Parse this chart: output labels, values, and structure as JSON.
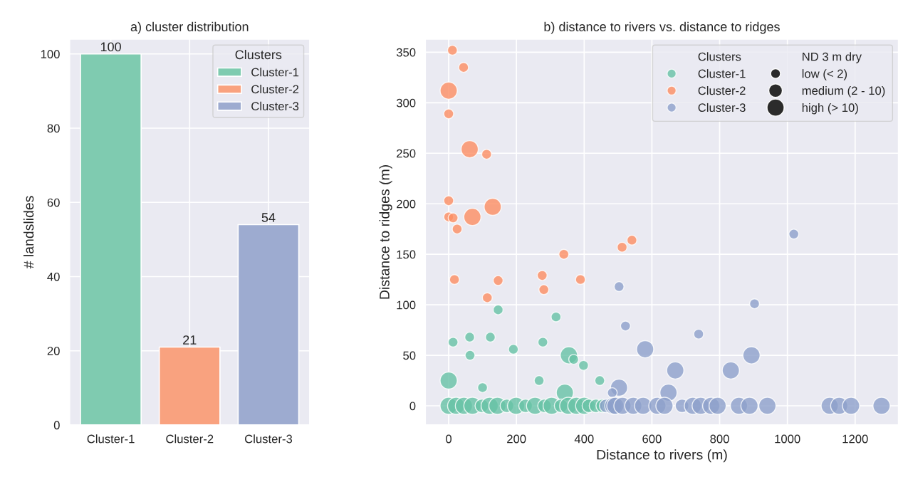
{
  "chart_data": [
    {
      "type": "bar",
      "title": "a) cluster distribution",
      "ylabel": "# landslides",
      "categories": [
        "Cluster-1",
        "Cluster-2",
        "Cluster-3"
      ],
      "series": [
        {
          "name": "Cluster-1",
          "color": "#7fcbb0",
          "values": [
            100,
            null,
            null
          ]
        },
        {
          "name": "Cluster-2",
          "color": "#f9a27f",
          "values": [
            null,
            21,
            null
          ]
        },
        {
          "name": "Cluster-3",
          "color": "#9dabd0",
          "values": [
            null,
            null,
            54
          ]
        }
      ],
      "data_labels": true,
      "ylim": [
        0,
        104
      ],
      "yticks": [
        0,
        20,
        40,
        60,
        80,
        100
      ],
      "grid": true,
      "legend": "top right",
      "legend_title": "Clusters"
    },
    {
      "type": "bubble",
      "title": "b) distance to rivers vs. distance to ridges",
      "xlabel": "Distance to rivers (m)",
      "ylabel": "Distance to ridges (m)",
      "legend_title": "Clusters",
      "legend": "top right",
      "grid": true,
      "annotations": [
        "ND 3 m dry"
      ],
      "size_legend": [
        {
          "value": 0.33,
          "label": "low (< 2)"
        },
        {
          "value": 0.63,
          "label": "medium (2 - 10)"
        },
        {
          "value": 1,
          "label": "high (> 10)"
        }
      ],
      "xlim": [
        -69,
        1328
      ],
      "xticks": [
        0,
        200,
        400,
        600,
        800,
        1000,
        1200
      ],
      "ylim": [
        -19,
        363
      ],
      "yticks": [
        0,
        50,
        100,
        150,
        200,
        250,
        300,
        350
      ],
      "series": [
        {
          "name": "Cluster-1",
          "color": "#66c2a5",
          "x": [
            146,
            317,
            13,
            62,
            123,
            63,
            191,
            278,
            355,
            369,
            398,
            0,
            100,
            267,
            446,
            343,
            0,
            22,
            45,
            70,
            98,
            121,
            144,
            172,
            199,
            227,
            255,
            283,
            304,
            332,
            353,
            377,
            400,
            414,
            435,
            455,
            475
          ],
          "values": [
            95,
            88,
            63,
            68,
            68,
            50,
            56,
            63,
            50,
            46,
            40,
            25,
            18,
            25,
            25,
            13,
            0,
            0,
            0,
            0,
            0,
            0,
            0,
            0,
            0,
            0,
            0,
            0,
            0,
            0,
            0,
            0,
            0,
            0,
            0,
            0,
            0
          ],
          "sizes": [
            0.33,
            0.33,
            0.33,
            0.33,
            0.33,
            0.33,
            0.33,
            0.33,
            1,
            0.33,
            0.33,
            1,
            0.33,
            0.33,
            0.33,
            1,
            1,
            1,
            1,
            1,
            0.63,
            1,
            1,
            0.63,
            1,
            0.63,
            1,
            0.63,
            1,
            0.63,
            1,
            1,
            1,
            0.63,
            0.63,
            0.63,
            0.63
          ]
        },
        {
          "name": "Cluster-2",
          "color": "#fc8d62",
          "x": [
            11,
            44,
            0,
            0,
            62,
            112,
            0,
            0,
            13,
            25,
            70,
            130,
            340,
            512,
            541,
            17,
            146,
            114,
            276,
            281,
            389
          ],
          "values": [
            352,
            335,
            312,
            289,
            254,
            249,
            203,
            187,
            186,
            175,
            187,
            197,
            150,
            157,
            164,
            125,
            124,
            107,
            129,
            115,
            125
          ],
          "sizes": [
            0.33,
            0.33,
            1,
            0.33,
            1,
            0.33,
            0.33,
            0.33,
            0.33,
            0.33,
            1,
            1,
            0.33,
            0.33,
            0.33,
            0.33,
            0.33,
            0.33,
            0.33,
            0.33,
            0.33
          ]
        },
        {
          "name": "Cluster-3",
          "color": "#8da0cb",
          "x": [
            503,
            522,
            1019,
            903,
            738,
            580,
            669,
            833,
            894,
            649,
            503,
            483,
            465,
            486,
            492,
            513,
            545,
            574,
            616,
            637,
            689,
            721,
            744,
            775,
            794,
            857,
            888,
            941,
            1125,
            1153,
            1188,
            1278
          ],
          "values": [
            118,
            79,
            170,
            101,
            71,
            56,
            35,
            35,
            50,
            13,
            18,
            13,
            0,
            0,
            0,
            0,
            0,
            0,
            0,
            0,
            0,
            0,
            0,
            0,
            0,
            0,
            0,
            0,
            0,
            0,
            0,
            0
          ],
          "sizes": [
            0.33,
            0.33,
            0.33,
            0.33,
            0.33,
            1,
            1,
            1,
            1,
            1,
            1,
            0.33,
            0.63,
            1,
            1,
            1,
            1,
            1,
            1,
            1,
            0.63,
            1,
            1,
            1,
            1,
            1,
            1,
            1,
            1,
            1,
            1,
            1
          ]
        }
      ]
    }
  ]
}
